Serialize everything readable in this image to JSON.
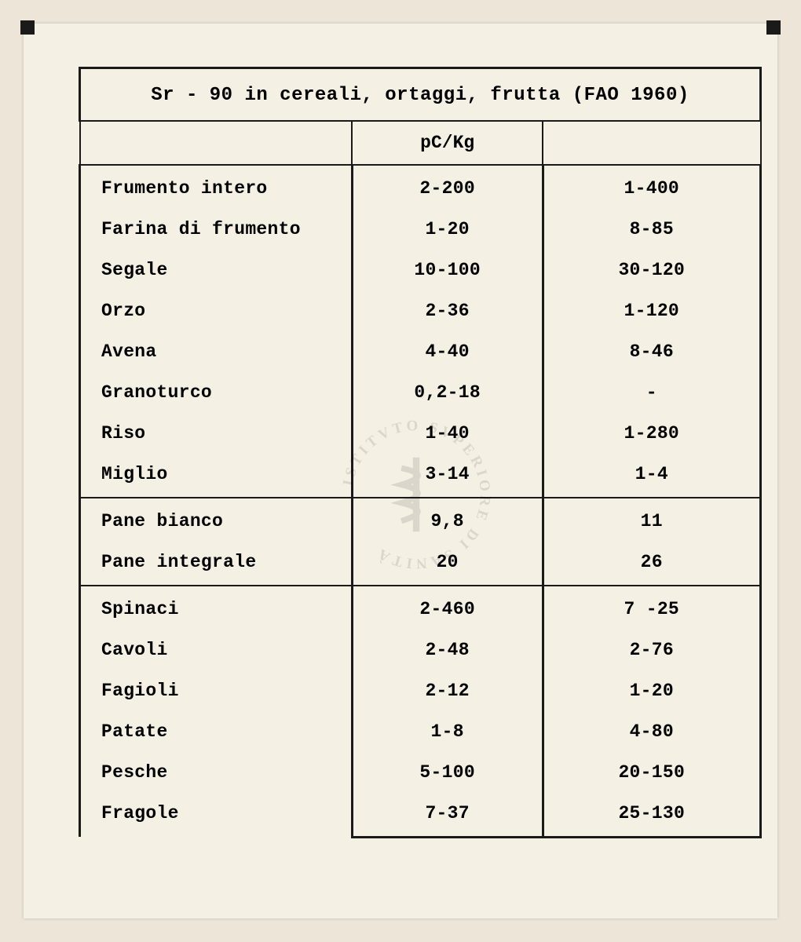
{
  "table": {
    "type": "table",
    "title": "Sr - 90 in cereali, ortaggi, frutta (FAO 1960)",
    "columns": [
      "",
      "pC/Kg",
      ""
    ],
    "background_color": "#f5f0e4",
    "page_color": "#ede6d8",
    "border_color": "#1a1a1a",
    "text_color": "#1a1a1a",
    "font_family": "Courier New",
    "title_fontsize": 24,
    "header_fontsize": 23,
    "cell_fontsize": 23,
    "font_weight": "bold",
    "outer_border_width": 3,
    "inner_border_width": 2.5,
    "col_widths_pct": [
      40,
      28,
      32
    ],
    "sections": [
      {
        "rows": [
          {
            "label": "Frumento intero",
            "col2": "2-200",
            "col3": "1-400"
          },
          {
            "label": "Farina di frumento",
            "col2": "1-20",
            "col3": "8-85"
          },
          {
            "label": "Segale",
            "col2": "10-100",
            "col3": "30-120"
          },
          {
            "label": "Orzo",
            "col2": "2-36",
            "col3": "1-120"
          },
          {
            "label": "Avena",
            "col2": "4-40",
            "col3": "8-46"
          },
          {
            "label": "Granoturco",
            "col2": "0,2-18",
            "col3": "-"
          },
          {
            "label": "Riso",
            "col2": "1-40",
            "col3": "1-280"
          },
          {
            "label": "Miglio",
            "col2": "3-14",
            "col3": "1-4"
          }
        ]
      },
      {
        "rows": [
          {
            "label": "Pane bianco",
            "col2": "9,8",
            "col3": "11"
          },
          {
            "label": "Pane integrale",
            "col2": "20",
            "col3": "26"
          }
        ]
      },
      {
        "rows": [
          {
            "label": "Spinaci",
            "col2": "2-460",
            "col3": "7 -25"
          },
          {
            "label": "Cavoli",
            "col2": "2-48",
            "col3": "2-76"
          },
          {
            "label": "Fagioli",
            "col2": "2-12",
            "col3": "1-20"
          },
          {
            "label": "Patate",
            "col2": "1-8",
            "col3": "4-80"
          },
          {
            "label": "Pesche",
            "col2": "5-100",
            "col3": "20-150"
          },
          {
            "label": "Fragole",
            "col2": "7-37",
            "col3": "25-130"
          }
        ]
      }
    ]
  },
  "watermark": {
    "text_circle": "ISTITVTO SVPERIORE DI SANITÀ",
    "color": "#000000",
    "opacity": 0.1
  }
}
